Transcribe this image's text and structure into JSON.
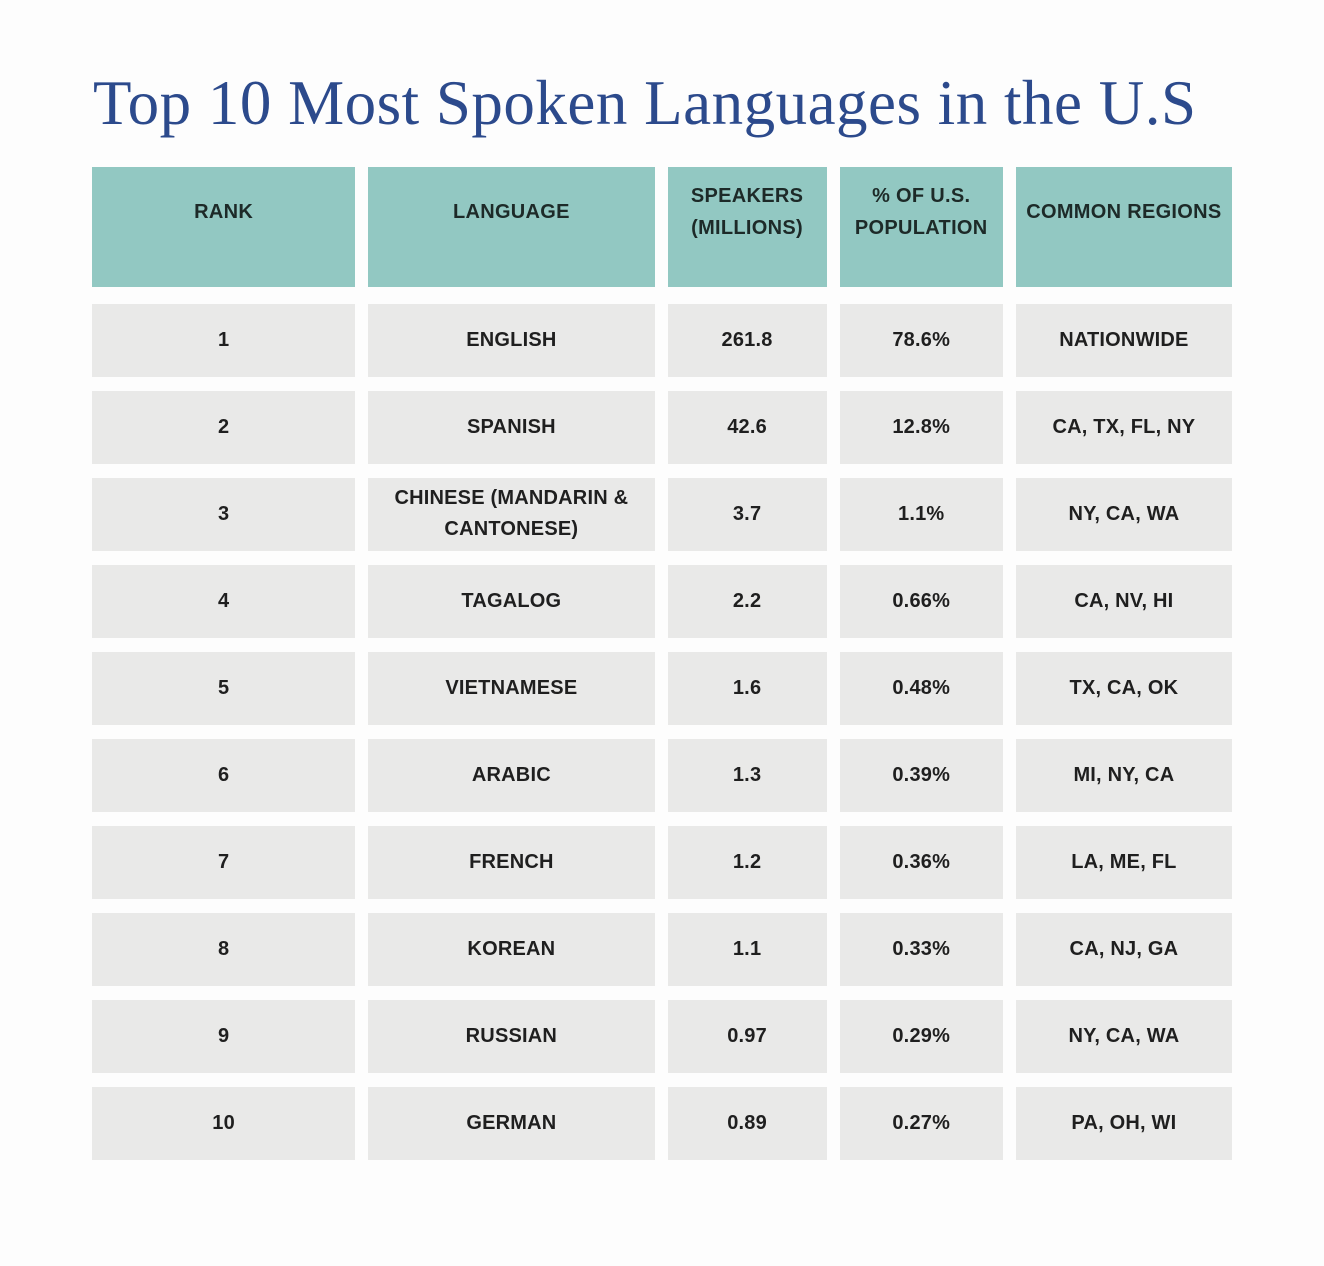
{
  "theme": {
    "page_bg": "#fdfdfd",
    "title_color": "#2c4a8c",
    "header_bg": "#92c8c2",
    "header_text": "#1d2a28",
    "row_bg": "#e9e9e8",
    "row_text": "#1f1f1f"
  },
  "title": "Top 10 Most Spoken Languages in the U.S",
  "table": {
    "columns": [
      "RANK",
      "LANGUAGE",
      "SPEAKERS (MILLIONS)",
      "% OF U.S. POPULATION",
      "COMMON REGIONS"
    ],
    "rows": [
      {
        "rank": "1",
        "language": "ENGLISH",
        "speakers": "261.8",
        "percent": "78.6%",
        "regions": "NATIONWIDE"
      },
      {
        "rank": "2",
        "language": "SPANISH",
        "speakers": "42.6",
        "percent": "12.8%",
        "regions": "CA, TX, FL, NY"
      },
      {
        "rank": "3",
        "language": "CHINESE (MANDARIN & CANTONESE)",
        "speakers": "3.7",
        "percent": "1.1%",
        "regions": "NY, CA, WA"
      },
      {
        "rank": "4",
        "language": "TAGALOG",
        "speakers": "2.2",
        "percent": "0.66%",
        "regions": "CA, NV, HI"
      },
      {
        "rank": "5",
        "language": "VIETNAMESE",
        "speakers": "1.6",
        "percent": "0.48%",
        "regions": "TX, CA, OK"
      },
      {
        "rank": "6",
        "language": "ARABIC",
        "speakers": "1.3",
        "percent": "0.39%",
        "regions": "MI, NY, CA"
      },
      {
        "rank": "7",
        "language": "FRENCH",
        "speakers": "1.2",
        "percent": "0.36%",
        "regions": "LA, ME, FL"
      },
      {
        "rank": "8",
        "language": "KOREAN",
        "speakers": "1.1",
        "percent": "0.33%",
        "regions": "CA, NJ, GA"
      },
      {
        "rank": "9",
        "language": "RUSSIAN",
        "speakers": "0.97",
        "percent": "0.29%",
        "regions": "NY, CA, WA"
      },
      {
        "rank": "10",
        "language": "GERMAN",
        "speakers": "0.89",
        "percent": "0.27%",
        "regions": "PA, OH, WI"
      }
    ]
  },
  "chart_data": {
    "type": "table",
    "title": "Top 10 Most Spoken Languages in the U.S",
    "columns": [
      "RANK",
      "LANGUAGE",
      "SPEAKERS (MILLIONS)",
      "% OF U.S. POPULATION",
      "COMMON REGIONS"
    ],
    "rows": [
      [
        1,
        "ENGLISH",
        261.8,
        78.6,
        "NATIONWIDE"
      ],
      [
        2,
        "SPANISH",
        42.6,
        12.8,
        "CA, TX, FL, NY"
      ],
      [
        3,
        "CHINESE (MANDARIN & CANTONESE)",
        3.7,
        1.1,
        "NY, CA, WA"
      ],
      [
        4,
        "TAGALOG",
        2.2,
        0.66,
        "CA, NV, HI"
      ],
      [
        5,
        "VIETNAMESE",
        1.6,
        0.48,
        "TX, CA, OK"
      ],
      [
        6,
        "ARABIC",
        1.3,
        0.39,
        "MI, NY, CA"
      ],
      [
        7,
        "FRENCH",
        1.2,
        0.36,
        "LA, ME, FL"
      ],
      [
        8,
        "KOREAN",
        1.1,
        0.33,
        "CA, NJ, GA"
      ],
      [
        9,
        "RUSSIAN",
        0.97,
        0.29,
        "NY, CA, WA"
      ],
      [
        10,
        "GERMAN",
        0.89,
        0.27,
        "PA, OH, WI"
      ]
    ],
    "percent_unit": "%",
    "speakers_unit": "millions"
  }
}
